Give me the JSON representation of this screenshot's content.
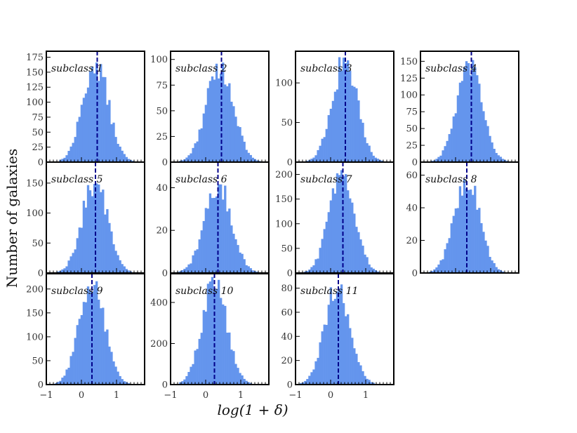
{
  "colors": {
    "bar": "#6495ed",
    "median_line": "#00008b",
    "frame": "#000000"
  },
  "figure": {
    "ylabel": "Number of galaxies",
    "xlabel": "log(1 + δ)"
  },
  "chart_data": [
    {
      "type": "bar",
      "label": "subclass 1",
      "ylim": [
        0,
        185
      ],
      "yticks": [
        0,
        25,
        50,
        75,
        100,
        125,
        150,
        175
      ],
      "median": 0.45,
      "center": 0.4,
      "sigma": 0.36,
      "peak": 170,
      "xlim": [
        -1,
        1.8
      ],
      "xticks": [
        -1,
        0,
        1
      ]
    },
    {
      "type": "bar",
      "label": "subclass 2",
      "ylim": [
        0,
        108
      ],
      "yticks": [
        0,
        25,
        50,
        75,
        100
      ],
      "median": 0.45,
      "center": 0.4,
      "sigma": 0.38,
      "peak": 98,
      "xlim": [
        -1,
        1.8
      ],
      "xticks": [
        -1,
        0,
        1
      ]
    },
    {
      "type": "bar",
      "label": "subclass 3",
      "ylim": [
        0,
        140
      ],
      "yticks": [
        0,
        50,
        100
      ],
      "median": 0.42,
      "center": 0.4,
      "sigma": 0.36,
      "peak": 133,
      "xlim": [
        -1,
        1.8
      ],
      "xticks": [
        -1,
        0,
        1
      ]
    },
    {
      "type": "bar",
      "label": "subclass 4",
      "ylim": [
        0,
        165
      ],
      "yticks": [
        0,
        25,
        50,
        75,
        100,
        125,
        150
      ],
      "median": 0.45,
      "center": 0.4,
      "sigma": 0.36,
      "peak": 152,
      "xlim": [
        -1,
        1.8
      ],
      "xticks": [
        -1,
        0,
        1
      ]
    },
    {
      "type": "bar",
      "label": "subclass 5",
      "ylim": [
        0,
        185
      ],
      "yticks": [
        0,
        50,
        100,
        150
      ],
      "median": 0.4,
      "center": 0.38,
      "sigma": 0.36,
      "peak": 158,
      "xlim": [
        -1,
        1.8
      ],
      "xticks": [
        -1,
        0,
        1
      ]
    },
    {
      "type": "bar",
      "label": "subclass 6",
      "ylim": [
        0,
        52
      ],
      "yticks": [
        0,
        20,
        40
      ],
      "median": 0.35,
      "center": 0.35,
      "sigma": 0.38,
      "peak": 43,
      "xlim": [
        -1,
        1.8
      ],
      "xticks": [
        -1,
        0,
        1
      ]
    },
    {
      "type": "bar",
      "label": "subclass 7",
      "ylim": [
        0,
        225
      ],
      "yticks": [
        0,
        50,
        100,
        150,
        200
      ],
      "median": 0.35,
      "center": 0.32,
      "sigma": 0.36,
      "peak": 212,
      "xlim": [
        -1,
        1.8
      ],
      "xticks": [
        -1,
        0,
        1
      ]
    },
    {
      "type": "bar",
      "label": "subclass 8",
      "ylim": [
        0,
        68
      ],
      "yticks": [
        0,
        20,
        40,
        60
      ],
      "median": 0.32,
      "center": 0.32,
      "sigma": 0.36,
      "peak": 60,
      "xlim": [
        -1,
        1.8
      ],
      "xticks": [
        -1,
        0,
        1
      ]
    },
    {
      "type": "bar",
      "label": "subclass 9",
      "ylim": [
        0,
        232
      ],
      "yticks": [
        0,
        50,
        100,
        150,
        200
      ],
      "median": 0.3,
      "center": 0.3,
      "sigma": 0.36,
      "peak": 222,
      "xlim": [
        -1,
        1.8
      ],
      "xticks": [
        -1,
        0,
        1
      ]
    },
    {
      "type": "bar",
      "label": "subclass 10",
      "ylim": [
        0,
        540
      ],
      "yticks": [
        0,
        200,
        400
      ],
      "median": 0.25,
      "center": 0.25,
      "sigma": 0.35,
      "peak": 525,
      "xlim": [
        -1,
        1.8
      ],
      "xticks": [
        -1,
        0,
        1
      ]
    },
    {
      "type": "bar",
      "label": "subclass 11",
      "ylim": [
        0,
        92
      ],
      "yticks": [
        0,
        20,
        40,
        60,
        80
      ],
      "median": 0.22,
      "center": 0.2,
      "sigma": 0.36,
      "peak": 84,
      "xlim": [
        -1,
        1.8
      ],
      "xticks": [
        -1,
        0,
        1
      ]
    }
  ]
}
